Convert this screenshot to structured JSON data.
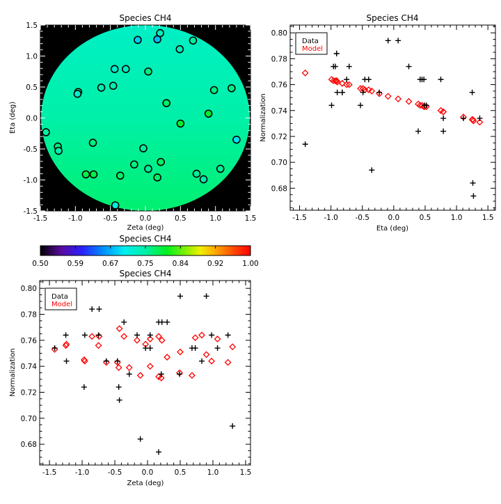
{
  "colormap": {
    "title": "Species CH4",
    "range": [
      0.5,
      1.0
    ],
    "tick_labels": [
      "0.50",
      "0.59",
      "0.67",
      "0.75",
      "0.84",
      "0.92",
      "1.00"
    ],
    "stops": [
      [
        0.5,
        "#000000"
      ],
      [
        0.55,
        "#5a0aa0"
      ],
      [
        0.6,
        "#2a20ff"
      ],
      [
        0.65,
        "#0090ff"
      ],
      [
        0.7,
        "#00eef0"
      ],
      [
        0.75,
        "#00f0a8"
      ],
      [
        0.8,
        "#00f020"
      ],
      [
        0.85,
        "#90f000"
      ],
      [
        0.88,
        "#f0f000"
      ],
      [
        0.92,
        "#ffa000"
      ],
      [
        0.96,
        "#ff4800"
      ],
      [
        1.0,
        "#ff0000"
      ]
    ]
  },
  "colors": {
    "data": "#000000",
    "model": "#ff0000",
    "background": "#000000"
  },
  "chart_data": [
    {
      "type": "heatmap",
      "title": "Species CH4",
      "xlabel": "Zeta (deg)",
      "ylabel": "Eta (deg)",
      "xlim": [
        -1.5,
        1.5
      ],
      "ylim": [
        -1.5,
        1.5
      ],
      "xticks": [
        "-1.5",
        "-1.0",
        "-0.5",
        "0.0",
        "0.5",
        "1.0",
        "1.5"
      ],
      "yticks": [
        "-1.5",
        "-1.0",
        "-0.5",
        "0.0",
        "0.5",
        "1.0",
        "1.5"
      ],
      "surface": "model normalization over circular field of radius 1.5 deg",
      "points_ref": "points"
    },
    {
      "type": "scatter",
      "title": "Species CH4",
      "xlabel": "Eta (deg)",
      "ylabel": "Normalization",
      "xkey": "eta",
      "xlim": [
        -1.65,
        1.62
      ],
      "ylim": [
        0.663,
        0.806
      ],
      "xticks": [
        "-1.5",
        "-1.0",
        "-0.5",
        "0.0",
        "0.5",
        "1.0",
        "1.5"
      ],
      "yticks": [
        "0.68",
        "0.70",
        "0.72",
        "0.74",
        "0.76",
        "0.78",
        "0.80"
      ],
      "legend": {
        "position": "top-left",
        "entries": [
          "Data",
          "Model"
        ]
      },
      "series": [
        {
          "name": "Data",
          "marker": "plus"
        },
        {
          "name": "Model",
          "marker": "diamond"
        }
      ]
    },
    {
      "type": "scatter",
      "title": "Species CH4",
      "xlabel": "Zeta (deg)",
      "ylabel": "Normalization",
      "xkey": "zeta",
      "xlim": [
        -1.65,
        1.575
      ],
      "ylim": [
        0.664,
        0.806
      ],
      "xticks": [
        "-1.5",
        "-1.0",
        "-0.5",
        "0.0",
        "0.5",
        "1.0",
        "1.5"
      ],
      "yticks": [
        "0.68",
        "0.70",
        "0.72",
        "0.74",
        "0.76",
        "0.78",
        "0.80"
      ],
      "legend": {
        "position": "top-left",
        "entries": [
          "Data",
          "Model"
        ]
      },
      "series": [
        {
          "name": "Data",
          "marker": "plus"
        },
        {
          "name": "Model",
          "marker": "diamond"
        }
      ]
    }
  ],
  "points": [
    {
      "zeta": -1.42,
      "eta": -0.23,
      "data": 0.754,
      "model": 0.753
    },
    {
      "zeta": -1.25,
      "eta": -0.46,
      "data": 0.764,
      "model": 0.756
    },
    {
      "zeta": -1.24,
      "eta": -0.53,
      "data": 0.744,
      "model": 0.757
    },
    {
      "zeta": -0.96,
      "eta": 0.42,
      "data": 0.764,
      "model": 0.744
    },
    {
      "zeta": -0.97,
      "eta": 0.39,
      "data": 0.724,
      "model": 0.745
    },
    {
      "zeta": -0.85,
      "eta": -0.91,
      "data": 0.784,
      "model": 0.763
    },
    {
      "zeta": -0.74,
      "eta": -0.91,
      "data": 0.784,
      "model": 0.763
    },
    {
      "zeta": -0.75,
      "eta": -0.4,
      "data": 0.764,
      "model": 0.756
    },
    {
      "zeta": -0.63,
      "eta": 0.49,
      "data": 0.744,
      "model": 0.743
    },
    {
      "zeta": -0.46,
      "eta": 0.52,
      "data": 0.744,
      "model": 0.743
    },
    {
      "zeta": -0.44,
      "eta": 0.79,
      "data": 0.724,
      "model": 0.739
    },
    {
      "zeta": -0.43,
      "eta": -1.41,
      "data": 0.714,
      "model": 0.769
    },
    {
      "zeta": -0.36,
      "eta": -0.93,
      "data": 0.774,
      "model": 0.763
    },
    {
      "zeta": -0.28,
      "eta": 0.79,
      "data": 0.734,
      "model": 0.739
    },
    {
      "zeta": -0.16,
      "eta": -0.75,
      "data": 0.764,
      "model": 0.76
    },
    {
      "zeta": -0.11,
      "eta": 1.26,
      "data": 0.684,
      "model": 0.733
    },
    {
      "zeta": -0.03,
      "eta": -0.49,
      "data": 0.754,
      "model": 0.757
    },
    {
      "zeta": 0.04,
      "eta": -0.82,
      "data": 0.754,
      "model": 0.761
    },
    {
      "zeta": 0.04,
      "eta": 0.75,
      "data": 0.764,
      "model": 0.74
    },
    {
      "zeta": 0.17,
      "eta": 1.27,
      "data": 0.674,
      "model": 0.732
    },
    {
      "zeta": 0.17,
      "eta": -0.96,
      "data": 0.774,
      "model": 0.763
    },
    {
      "zeta": 0.21,
      "eta": 1.37,
      "data": 0.734,
      "model": 0.731
    },
    {
      "zeta": 0.22,
      "eta": -0.71,
      "data": 0.774,
      "model": 0.76
    },
    {
      "zeta": 0.3,
      "eta": 0.24,
      "data": 0.774,
      "model": 0.747
    },
    {
      "zeta": 0.49,
      "eta": 1.11,
      "data": 0.734,
      "model": 0.735
    },
    {
      "zeta": 0.5,
      "eta": -0.09,
      "data": 0.794,
      "model": 0.751
    },
    {
      "zeta": 0.68,
      "eta": 1.25,
      "data": 0.754,
      "model": 0.733
    },
    {
      "zeta": 0.73,
      "eta": -0.9,
      "data": 0.754,
      "model": 0.762
    },
    {
      "zeta": 0.83,
      "eta": -0.99,
      "data": 0.744,
      "model": 0.764
    },
    {
      "zeta": 0.9,
      "eta": 0.07,
      "data": 0.794,
      "model": 0.749
    },
    {
      "zeta": 0.98,
      "eta": 0.45,
      "data": 0.764,
      "model": 0.744
    },
    {
      "zeta": 1.07,
      "eta": -0.82,
      "data": 0.754,
      "model": 0.761
    },
    {
      "zeta": 1.23,
      "eta": 0.48,
      "data": 0.764,
      "model": 0.743
    },
    {
      "zeta": 1.3,
      "eta": -0.35,
      "data": 0.694,
      "model": 0.755
    }
  ]
}
